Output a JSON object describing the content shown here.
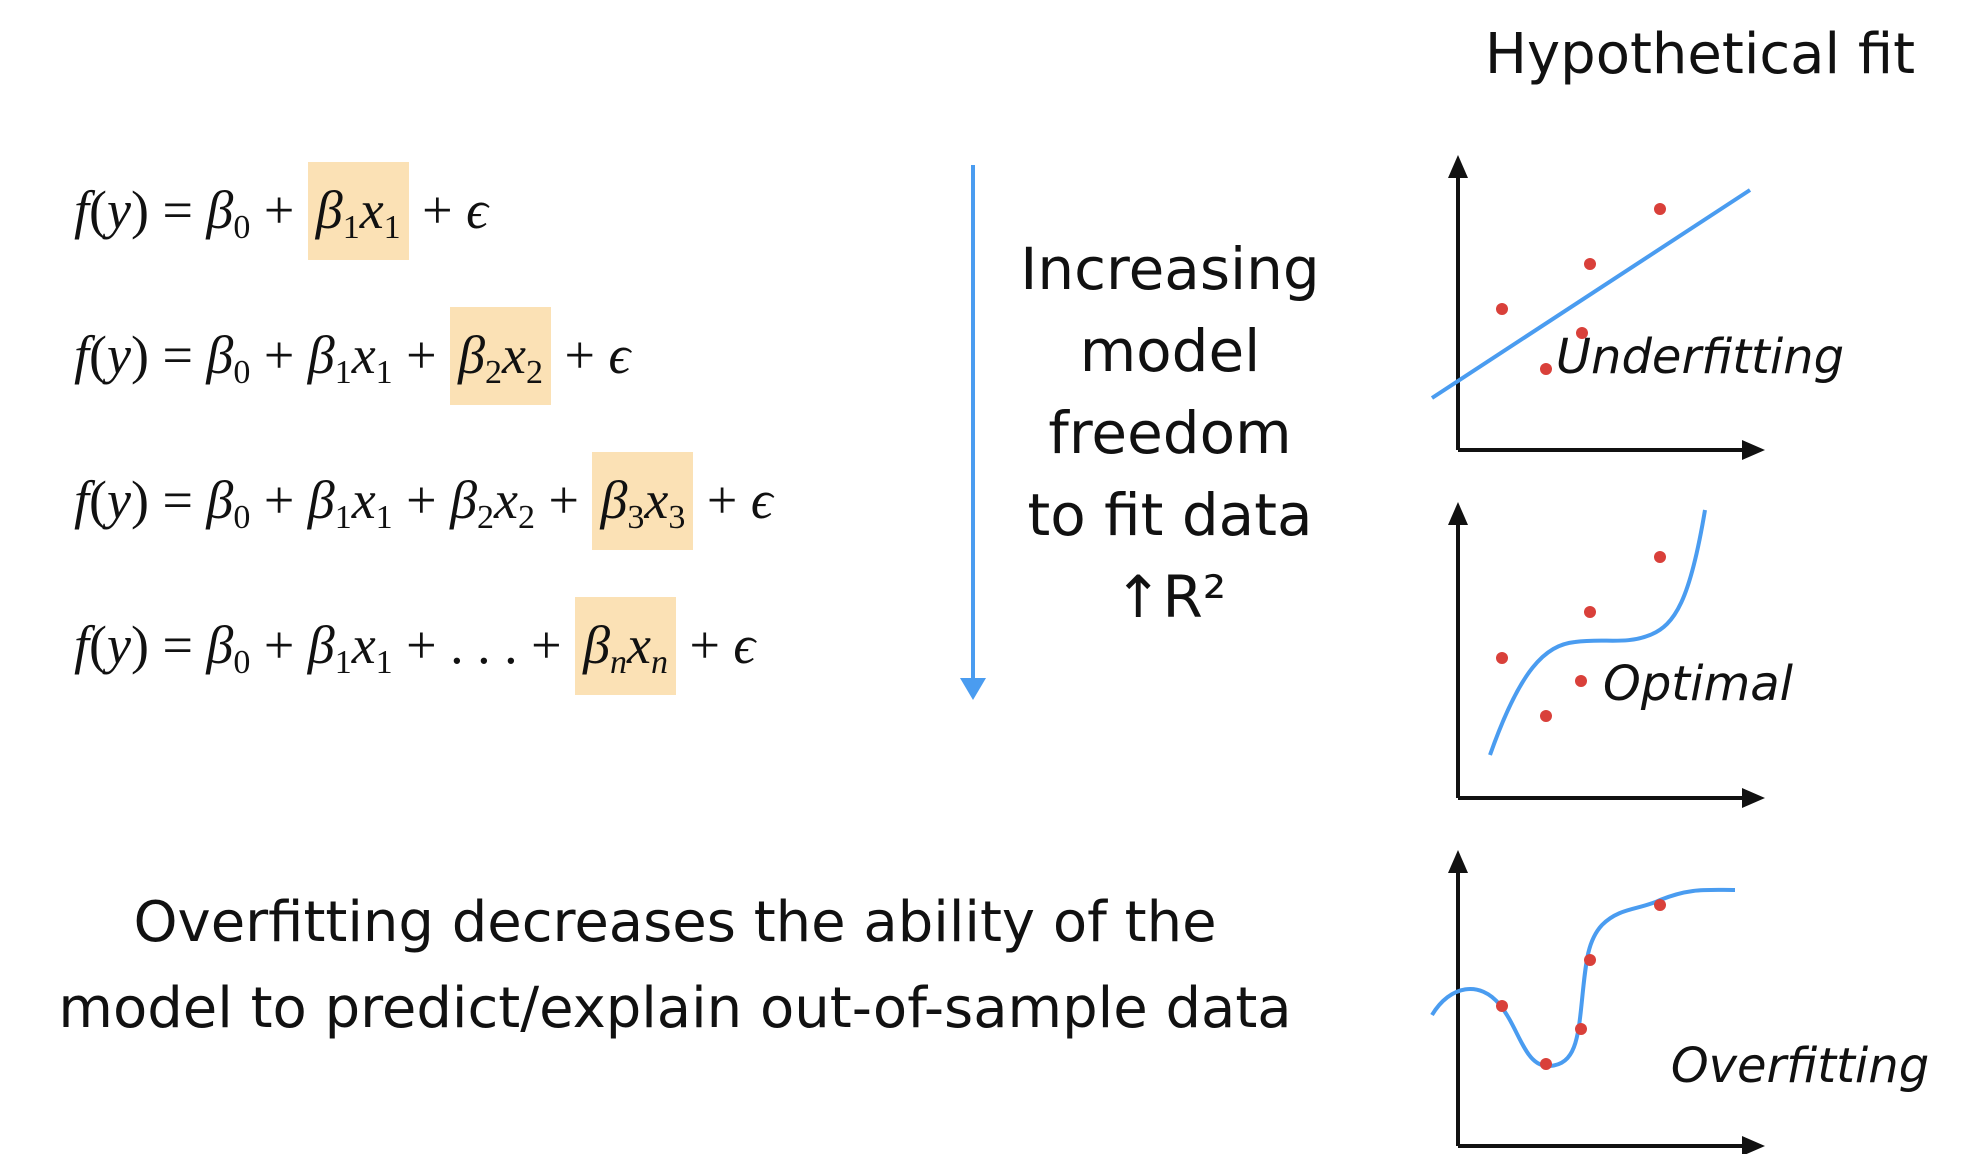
{
  "title": "Hypothetical fit",
  "equations": [
    {
      "plain": "f(y) = β0 + β1x1 + ε",
      "highlight": "β1x1"
    },
    {
      "plain": "f(y) = β0 + β1x1 + β2x2 + ε",
      "highlight": "β2x2"
    },
    {
      "plain": "f(y) = β0 + β1x1 + β2x2 + β3x3 + ε",
      "highlight": "β3x3"
    },
    {
      "plain": "f(y) = β0 + β1x1 + ... + βnxn + ε",
      "highlight": "βnxn"
    }
  ],
  "arrow_text": [
    "Increasing",
    "model",
    "freedom",
    "to fit data",
    "↑R²"
  ],
  "caption": [
    "Overfitting decreases the ability of the",
    "model to predict/explain out-of-sample data"
  ],
  "plots": [
    {
      "label": "Underfitting"
    },
    {
      "label": "Optimal"
    },
    {
      "label": "Overfitting"
    }
  ],
  "colors": {
    "arrow": "#4a9cf0",
    "fit_line": "#4a9cf0",
    "points": "#d9403a",
    "highlight": "#fbe1b5"
  }
}
